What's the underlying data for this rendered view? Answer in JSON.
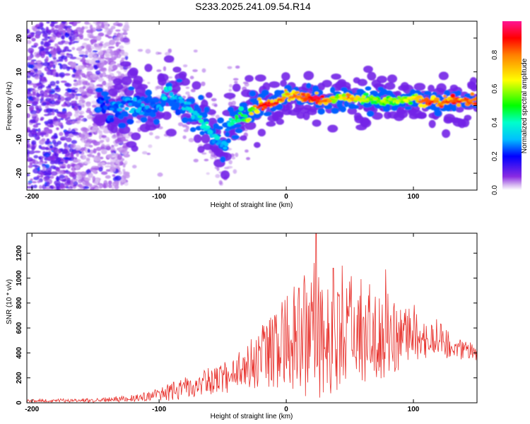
{
  "title": "S233.2025.241.09.54.R14",
  "chart_data": [
    {
      "type": "heatmap",
      "name": "spectrogram",
      "xlabel": "Height of straight line (km)",
      "ylabel": "Frequency (Hz)",
      "xlim": [
        -204,
        150
      ],
      "ylim": [
        -25,
        25
      ],
      "xticks": [
        -200,
        -100,
        0,
        100
      ],
      "yticks": [
        -20,
        -10,
        0,
        10,
        20
      ],
      "colorbar": {
        "label": "Normalized spectral amplitude",
        "range": [
          0,
          1
        ],
        "ticks": [
          0.0,
          0.2,
          0.4,
          0.6,
          0.8
        ]
      },
      "ridge": {
        "x": [
          -145,
          -130,
          -115,
          -100,
          -95,
          -85,
          -75,
          -65,
          -55,
          -48,
          -45,
          -40,
          -35,
          -30,
          -25,
          -20,
          -10,
          0,
          10,
          20,
          30,
          40,
          50,
          60,
          70,
          80,
          90,
          100,
          110,
          120,
          130,
          140,
          150
        ],
        "y": [
          0.5,
          0.3,
          0,
          -0.5,
          5,
          2,
          -1,
          -5,
          -10,
          -12.5,
          -5,
          -4.5,
          -3.5,
          -2,
          -1,
          0,
          0.5,
          3,
          2.5,
          2,
          1.5,
          2,
          2.5,
          1.5,
          1.5,
          1.5,
          1.5,
          2.5,
          1,
          1,
          1.5,
          1.5,
          1.5
        ],
        "amplitude": [
          0.25,
          0.3,
          0.3,
          0.3,
          0.4,
          0.3,
          0.35,
          0.4,
          0.35,
          0.3,
          0.35,
          0.5,
          0.5,
          0.6,
          0.7,
          0.85,
          0.9,
          0.75,
          0.8,
          0.9,
          0.85,
          0.6,
          0.8,
          0.6,
          0.55,
          0.6,
          0.6,
          0.65,
          0.85,
          0.8,
          0.85,
          0.85,
          0.8
        ]
      },
      "noise_region_x": [
        -204,
        -140
      ]
    },
    {
      "type": "line",
      "name": "snr",
      "xlabel": "Height of straight line (km)",
      "ylabel": "SNR (10 * v/v)",
      "xlim": [
        -204,
        150
      ],
      "ylim": [
        0,
        1360
      ],
      "xticks": [
        -200,
        -100,
        0,
        100
      ],
      "yticks": [
        0,
        200,
        400,
        600,
        800,
        1000,
        1200
      ],
      "color": "#e8322d",
      "envelope": {
        "x": [
          -204,
          -150,
          -120,
          -100,
          -80,
          -60,
          -40,
          -30,
          -20,
          -10,
          0,
          10,
          20,
          30,
          40,
          50,
          60,
          70,
          80,
          90,
          100,
          110,
          120,
          130,
          140,
          150
        ],
        "base": [
          15,
          20,
          35,
          60,
          110,
          170,
          230,
          300,
          360,
          400,
          460,
          520,
          560,
          560,
          560,
          560,
          560,
          560,
          560,
          560,
          560,
          540,
          500,
          450,
          420,
          400
        ],
        "amp": [
          10,
          15,
          25,
          50,
          80,
          100,
          130,
          170,
          220,
          270,
          330,
          420,
          470,
          460,
          450,
          400,
          360,
          350,
          330,
          270,
          220,
          170,
          130,
          90,
          70,
          60
        ]
      },
      "peaks": [
        {
          "x": 23.5,
          "y": 1360
        },
        {
          "x": 44,
          "y": 1100
        },
        {
          "x": 78,
          "y": 1070
        },
        {
          "x": 37,
          "y": 1080
        },
        {
          "x": 10,
          "y": 920
        }
      ]
    }
  ]
}
